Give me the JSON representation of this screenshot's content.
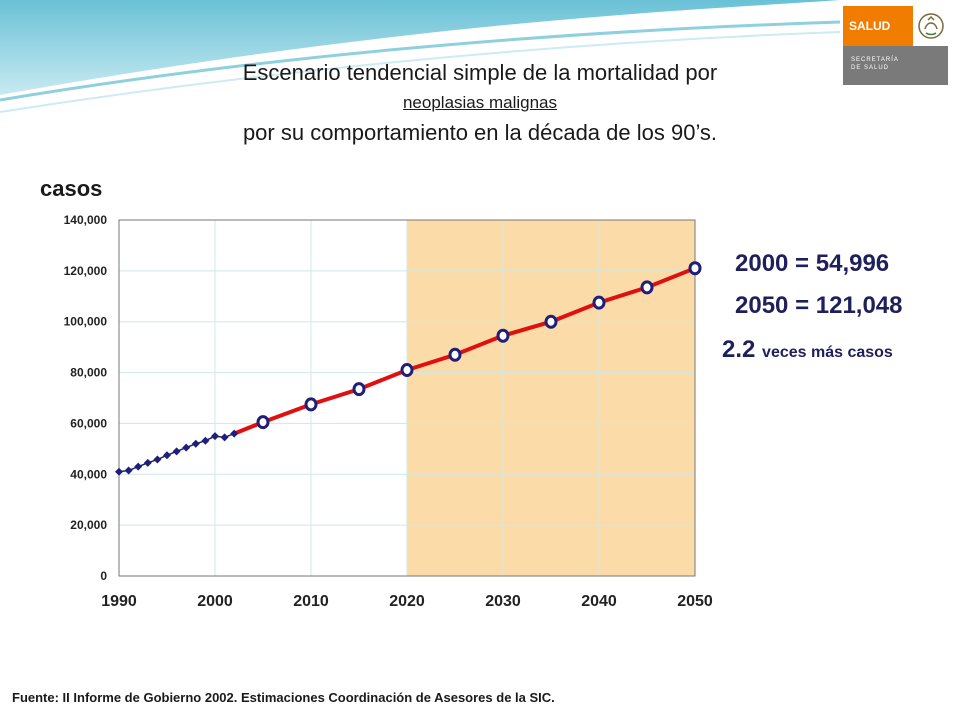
{
  "logo": {
    "word": "SALUD",
    "sub_line1": "SECRETARÍA",
    "sub_line2": "DE SALUD",
    "seal_icon": "mexican-eagle-seal"
  },
  "title": {
    "line1": "Escenario tendencial simple de la mortalidad por",
    "line2": "neoplasias malignas",
    "line3": "por su comportamiento en la década de los 90’s."
  },
  "stats": {
    "row1_label": "2000 =",
    "row1_value": "54,996",
    "row2_label": "2050",
    "row2_value": "= 121,048",
    "ratio": "2.2",
    "ratio_text": "veces más casos"
  },
  "source": "Fuente: II Informe de Gobierno 2002. Estimaciones Coordinación de Asesores de la SIC.",
  "colors": {
    "observed": "#1f1f7a",
    "projection_line": "#e01010",
    "projection_marker": "#1f1f7a",
    "forecast_shade": "#fbdca8"
  },
  "chart_data": {
    "type": "line",
    "ylabel": "casos",
    "xlabel": "",
    "xlim": [
      1990,
      2050
    ],
    "ylim": [
      0,
      140000
    ],
    "x_ticks": [
      1990,
      2000,
      2010,
      2020,
      2030,
      2040,
      2050
    ],
    "y_ticks": [
      0,
      20000,
      40000,
      60000,
      80000,
      100000,
      120000,
      140000
    ],
    "y_tick_labels": [
      "0",
      "20,000",
      "40,000",
      "60,000",
      "80,000",
      "100,000",
      "120,000",
      "140,000"
    ],
    "grid": true,
    "shaded_region": [
      2020,
      2050
    ],
    "series": [
      {
        "marker": "diamond",
        "x": [
          1990,
          1991,
          1992,
          1993,
          1994,
          1995,
          1996,
          1997,
          1998,
          1999,
          2000,
          2001,
          2002
        ],
        "y": [
          41000,
          41500,
          43000,
          44500,
          45800,
          47500,
          49000,
          50500,
          52000,
          53200,
          54996,
          54500,
          56000
        ]
      },
      {
        "marker": "circle",
        "x": [
          2002,
          2005,
          2010,
          2015,
          2020,
          2025,
          2030,
          2035,
          2040,
          2045,
          2050
        ],
        "y": [
          56000,
          60500,
          67500,
          73500,
          81000,
          87000,
          94500,
          100000,
          107500,
          113500,
          121048
        ]
      }
    ]
  }
}
